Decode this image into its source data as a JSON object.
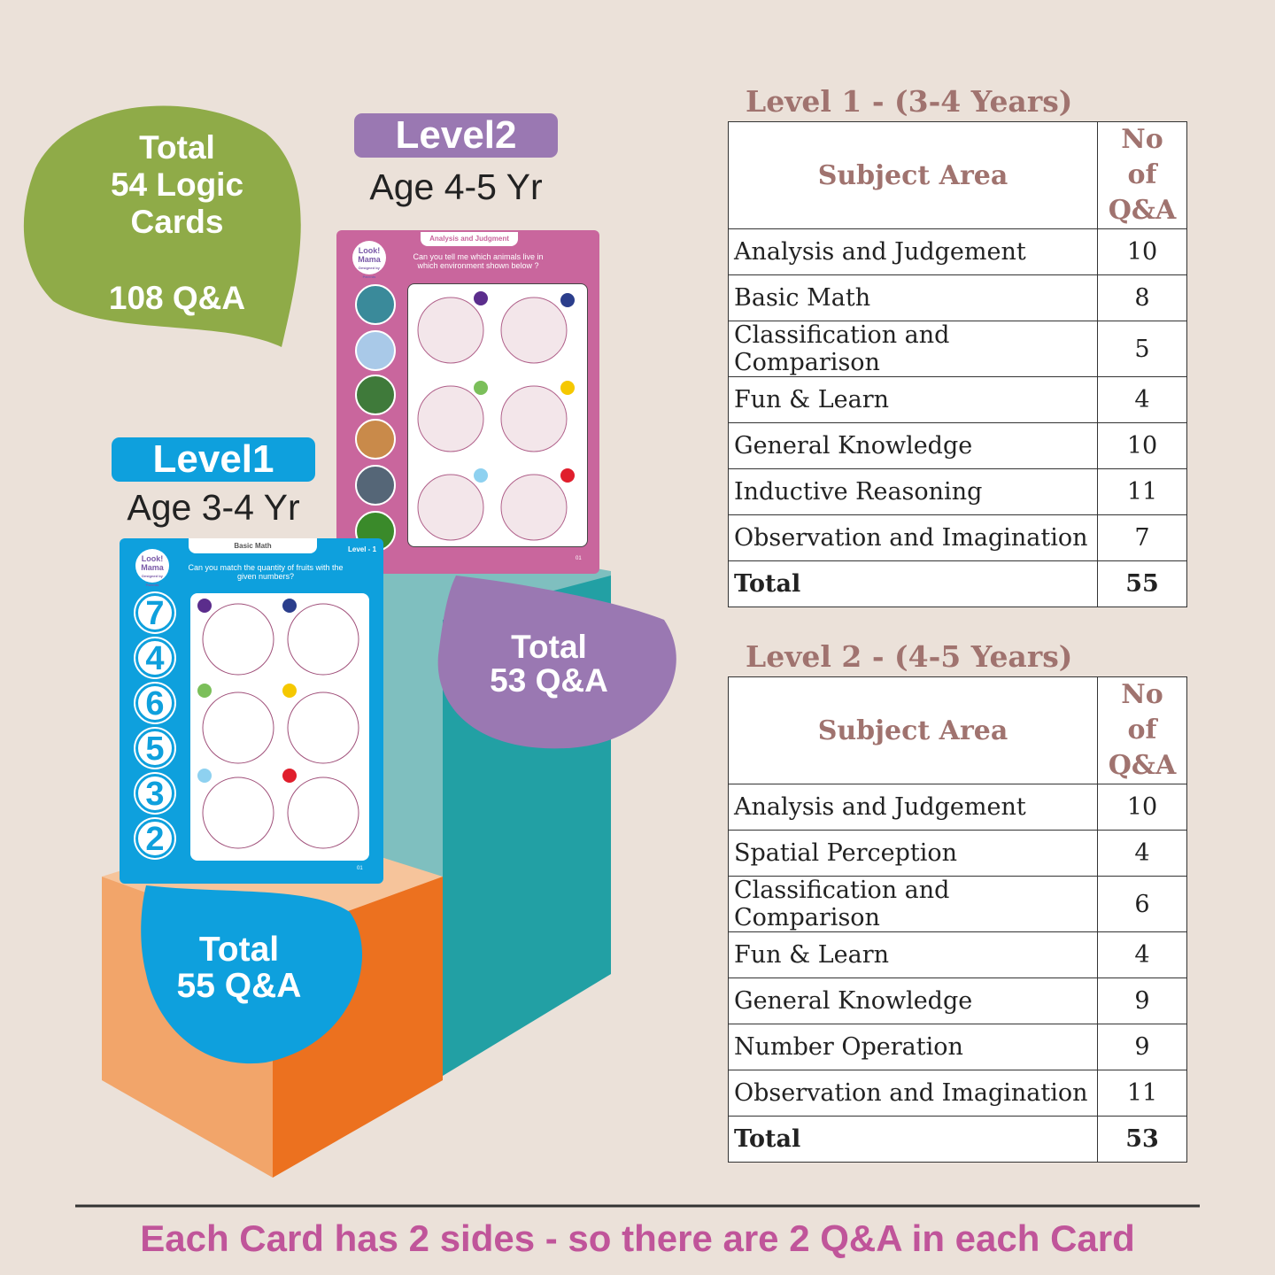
{
  "badge": {
    "lines": [
      "Total",
      "54 Logic",
      "Cards"
    ],
    "qa": "108 Q&A"
  },
  "level2": {
    "title": "Level2",
    "age": "Age 4-5 Yr",
    "total": [
      "Total",
      "53 Q&A"
    ],
    "card": {
      "brand": [
        "Look!",
        "Mama"
      ],
      "tagline": "Designed by Parents",
      "topic": "Analysis and Judgment",
      "question": "Can you tell me which animals live in which environment shown below ?",
      "page": "01"
    }
  },
  "level1": {
    "title": "Level1",
    "age": "Age 3-4 Yr",
    "total": [
      "Total",
      "55 Q&A"
    ],
    "card": {
      "brand": [
        "Look!",
        "Mama"
      ],
      "tagline": "Designed by Parents",
      "topic": "Basic Math",
      "level": "Level - 1",
      "question": "Can you match the quantity of fruits with the given numbers?",
      "numbers": [
        7,
        4,
        6,
        5,
        3,
        2
      ],
      "page": "01"
    }
  },
  "tables": [
    {
      "title": "Level 1 - (3-4 Years)",
      "header": [
        "Subject Area",
        "No of Q&A"
      ],
      "rows": [
        [
          "Analysis and Judgement",
          10
        ],
        [
          "Basic Math",
          8
        ],
        [
          "Classification and Comparison",
          5
        ],
        [
          "Fun & Learn",
          4
        ],
        [
          "General Knowledge",
          10
        ],
        [
          "Inductive Reasoning",
          11
        ],
        [
          "Observation and Imagination",
          7
        ]
      ],
      "total": [
        "Total",
        55
      ]
    },
    {
      "title": "Level 2 - (4-5 Years)",
      "header": [
        "Subject Area",
        "No of Q&A"
      ],
      "rows": [
        [
          "Analysis and Judgement",
          10
        ],
        [
          "Spatial Perception",
          4
        ],
        [
          "Classification and Comparison",
          6
        ],
        [
          "Fun & Learn",
          4
        ],
        [
          "General Knowledge",
          9
        ],
        [
          "Number Operation",
          9
        ],
        [
          "Observation and Imagination",
          11
        ]
      ],
      "total": [
        "Total",
        53
      ]
    }
  ],
  "footer": "Each Card has 2 sides - so there are 2 Q&A in each Card"
}
